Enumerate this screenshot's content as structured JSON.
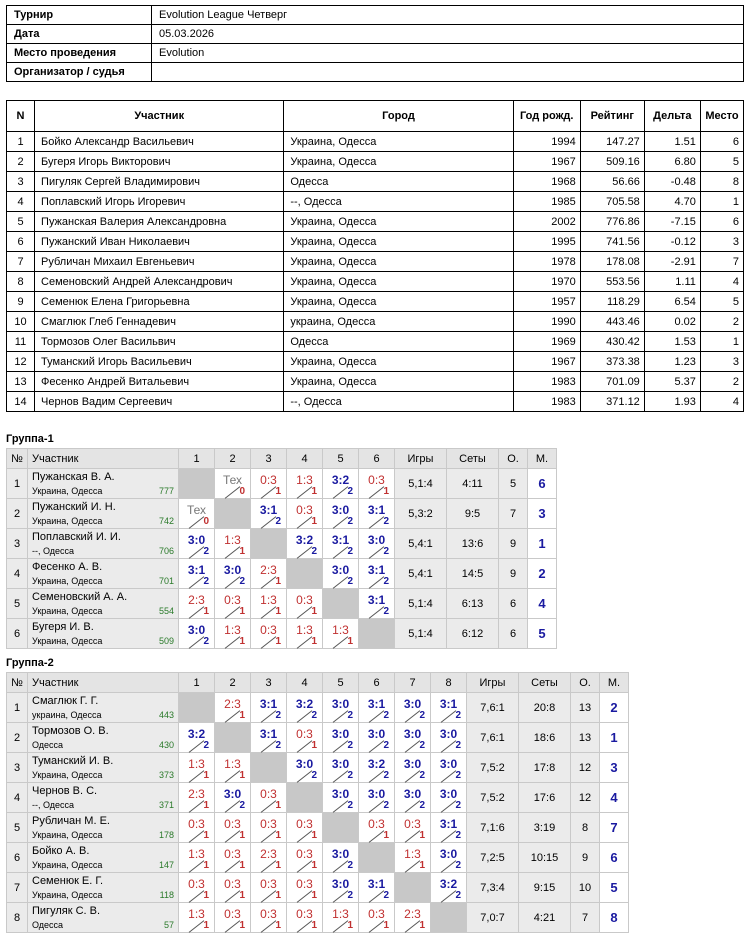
{
  "info": [
    {
      "key": "Турнир",
      "value": "Evolution League Четверг"
    },
    {
      "key": "Дата",
      "value": "05.03.2026"
    },
    {
      "key": "Место проведения",
      "value": "Evolution"
    },
    {
      "key": "Организатор / судья",
      "value": ""
    }
  ],
  "participants": {
    "headers": [
      "N",
      "Участник",
      "Город",
      "Год рожд.",
      "Рейтинг",
      "Дельта",
      "Место"
    ],
    "rows": [
      [
        "1",
        "Бойко Александр Васильевич",
        "Украина, Одесса",
        "1994",
        "147.27",
        "1.51",
        "6"
      ],
      [
        "2",
        "Бугеря Игорь Викторович",
        "Украина, Одесса",
        "1967",
        "509.16",
        "6.80",
        "5"
      ],
      [
        "3",
        "Пигуляк Сергей Владимирович",
        "Одесса",
        "1968",
        "56.66",
        "-0.48",
        "8"
      ],
      [
        "4",
        "Поплавский Игорь Игоревич",
        "--, Одесса",
        "1985",
        "705.58",
        "4.70",
        "1"
      ],
      [
        "5",
        "Пужанская  Валерия Александровна",
        "Украина, Одесса",
        "2002",
        "776.86",
        "-7.15",
        "6"
      ],
      [
        "6",
        "Пужанский Иван Николаевич",
        "Украина, Одесса",
        "1995",
        "741.56",
        "-0.12",
        "3"
      ],
      [
        "7",
        "Рубличан Михаил Евгеньевич",
        "Украина, Одесса",
        "1978",
        "178.08",
        "-2.91",
        "7"
      ],
      [
        "8",
        "Семеновский Андрей Александрович",
        "Украина, Одесса",
        "1970",
        "553.56",
        "1.11",
        "4"
      ],
      [
        "9",
        "Семенюк Елена Григорьевна",
        "Украина, Одесса",
        "1957",
        "118.29",
        "6.54",
        "5"
      ],
      [
        "10",
        "Смаглюк Глеб Геннадевич",
        "украина, Одесса",
        "1990",
        "443.46",
        "0.02",
        "2"
      ],
      [
        "11",
        "Тормозов Олег Васильвич",
        "Одесса",
        "1969",
        "430.42",
        "1.53",
        "1"
      ],
      [
        "12",
        "Туманский Игорь Васильевич",
        "Украина, Одесса",
        "1967",
        "373.38",
        "1.23",
        "3"
      ],
      [
        "13",
        "Фесенко Андрей Витальевич",
        "Украина, Одесса",
        "1983",
        "701.09",
        "5.37",
        "2"
      ],
      [
        "14",
        "Чернов Вадим Сергеевич",
        "--, Одесса",
        "1983",
        "371.12",
        "1.93",
        "4"
      ]
    ]
  },
  "groups": [
    {
      "title": "Группа-1",
      "headers": {
        "num": "№",
        "name": "Участник",
        "games": "Игры",
        "sets": "Сеты",
        "points": "О.",
        "place": "М."
      },
      "rows": [
        {
          "n": "1",
          "name": "Пужанская В. А.",
          "city": "Украина, Одесса",
          "rating": "777",
          "cells": [
            null,
            {
              "s": "Тех",
              "p": "0",
              "r": "tech"
            },
            {
              "s": "0:3",
              "p": "1",
              "r": "loss"
            },
            {
              "s": "1:3",
              "p": "1",
              "r": "loss"
            },
            {
              "s": "3:2",
              "p": "2",
              "r": "win"
            },
            {
              "s": "0:3",
              "p": "1",
              "r": "loss"
            }
          ],
          "games": "5,1:4",
          "sets": "4:11",
          "points": "5",
          "place": "6"
        },
        {
          "n": "2",
          "name": "Пужанский И. Н.",
          "city": "Украина, Одесса",
          "rating": "742",
          "cells": [
            {
              "s": "Тех",
              "p": "0",
              "r": "tech"
            },
            null,
            {
              "s": "3:1",
              "p": "2",
              "r": "win"
            },
            {
              "s": "0:3",
              "p": "1",
              "r": "loss"
            },
            {
              "s": "3:0",
              "p": "2",
              "r": "win"
            },
            {
              "s": "3:1",
              "p": "2",
              "r": "win"
            }
          ],
          "games": "5,3:2",
          "sets": "9:5",
          "points": "7",
          "place": "3"
        },
        {
          "n": "3",
          "name": "Поплавский И. И.",
          "city": "--, Одесса",
          "rating": "706",
          "cells": [
            {
              "s": "3:0",
              "p": "2",
              "r": "win"
            },
            {
              "s": "1:3",
              "p": "1",
              "r": "loss"
            },
            null,
            {
              "s": "3:2",
              "p": "2",
              "r": "win"
            },
            {
              "s": "3:1",
              "p": "2",
              "r": "win"
            },
            {
              "s": "3:0",
              "p": "2",
              "r": "win"
            }
          ],
          "games": "5,4:1",
          "sets": "13:6",
          "points": "9",
          "place": "1"
        },
        {
          "n": "4",
          "name": "Фесенко А. В.",
          "city": "Украина, Одесса",
          "rating": "701",
          "cells": [
            {
              "s": "3:1",
              "p": "2",
              "r": "win"
            },
            {
              "s": "3:0",
              "p": "2",
              "r": "win"
            },
            {
              "s": "2:3",
              "p": "1",
              "r": "loss"
            },
            null,
            {
              "s": "3:0",
              "p": "2",
              "r": "win"
            },
            {
              "s": "3:1",
              "p": "2",
              "r": "win"
            }
          ],
          "games": "5,4:1",
          "sets": "14:5",
          "points": "9",
          "place": "2"
        },
        {
          "n": "5",
          "name": "Семеновский А. А.",
          "city": "Украина, Одесса",
          "rating": "554",
          "cells": [
            {
              "s": "2:3",
              "p": "1",
              "r": "loss"
            },
            {
              "s": "0:3",
              "p": "1",
              "r": "loss"
            },
            {
              "s": "1:3",
              "p": "1",
              "r": "loss"
            },
            {
              "s": "0:3",
              "p": "1",
              "r": "loss"
            },
            null,
            {
              "s": "3:1",
              "p": "2",
              "r": "win"
            }
          ],
          "games": "5,1:4",
          "sets": "6:13",
          "points": "6",
          "place": "4"
        },
        {
          "n": "6",
          "name": "Бугеря И. В.",
          "city": "Украина, Одесса",
          "rating": "509",
          "cells": [
            {
              "s": "3:0",
              "p": "2",
              "r": "win"
            },
            {
              "s": "1:3",
              "p": "1",
              "r": "loss"
            },
            {
              "s": "0:3",
              "p": "1",
              "r": "loss"
            },
            {
              "s": "1:3",
              "p": "1",
              "r": "loss"
            },
            {
              "s": "1:3",
              "p": "1",
              "r": "loss"
            },
            null
          ],
          "games": "5,1:4",
          "sets": "6:12",
          "points": "6",
          "place": "5"
        }
      ]
    },
    {
      "title": "Группа-2",
      "headers": {
        "num": "№",
        "name": "Участник",
        "games": "Игры",
        "sets": "Сеты",
        "points": "О.",
        "place": "М."
      },
      "rows": [
        {
          "n": "1",
          "name": "Смаглюк Г. Г.",
          "city": "украина, Одесса",
          "rating": "443",
          "cells": [
            null,
            {
              "s": "2:3",
              "p": "1",
              "r": "loss"
            },
            {
              "s": "3:1",
              "p": "2",
              "r": "win"
            },
            {
              "s": "3:2",
              "p": "2",
              "r": "win"
            },
            {
              "s": "3:0",
              "p": "2",
              "r": "win"
            },
            {
              "s": "3:1",
              "p": "2",
              "r": "win"
            },
            {
              "s": "3:0",
              "p": "2",
              "r": "win"
            },
            {
              "s": "3:1",
              "p": "2",
              "r": "win"
            }
          ],
          "games": "7,6:1",
          "sets": "20:8",
          "points": "13",
          "place": "2"
        },
        {
          "n": "2",
          "name": "Тормозов О. В.",
          "city": "Одесса",
          "rating": "430",
          "cells": [
            {
              "s": "3:2",
              "p": "2",
              "r": "win"
            },
            null,
            {
              "s": "3:1",
              "p": "2",
              "r": "win"
            },
            {
              "s": "0:3",
              "p": "1",
              "r": "loss"
            },
            {
              "s": "3:0",
              "p": "2",
              "r": "win"
            },
            {
              "s": "3:0",
              "p": "2",
              "r": "win"
            },
            {
              "s": "3:0",
              "p": "2",
              "r": "win"
            },
            {
              "s": "3:0",
              "p": "2",
              "r": "win"
            }
          ],
          "games": "7,6:1",
          "sets": "18:6",
          "points": "13",
          "place": "1"
        },
        {
          "n": "3",
          "name": "Туманский И. В.",
          "city": "Украина, Одесса",
          "rating": "373",
          "cells": [
            {
              "s": "1:3",
              "p": "1",
              "r": "loss"
            },
            {
              "s": "1:3",
              "p": "1",
              "r": "loss"
            },
            null,
            {
              "s": "3:0",
              "p": "2",
              "r": "win"
            },
            {
              "s": "3:0",
              "p": "2",
              "r": "win"
            },
            {
              "s": "3:2",
              "p": "2",
              "r": "win"
            },
            {
              "s": "3:0",
              "p": "2",
              "r": "win"
            },
            {
              "s": "3:0",
              "p": "2",
              "r": "win"
            }
          ],
          "games": "7,5:2",
          "sets": "17:8",
          "points": "12",
          "place": "3"
        },
        {
          "n": "4",
          "name": "Чернов В. С.",
          "city": "--, Одесса",
          "rating": "371",
          "cells": [
            {
              "s": "2:3",
              "p": "1",
              "r": "loss"
            },
            {
              "s": "3:0",
              "p": "2",
              "r": "win"
            },
            {
              "s": "0:3",
              "p": "1",
              "r": "loss"
            },
            null,
            {
              "s": "3:0",
              "p": "2",
              "r": "win"
            },
            {
              "s": "3:0",
              "p": "2",
              "r": "win"
            },
            {
              "s": "3:0",
              "p": "2",
              "r": "win"
            },
            {
              "s": "3:0",
              "p": "2",
              "r": "win"
            }
          ],
          "games": "7,5:2",
          "sets": "17:6",
          "points": "12",
          "place": "4"
        },
        {
          "n": "5",
          "name": "Рубличан М. Е.",
          "city": "Украина, Одесса",
          "rating": "178",
          "cells": [
            {
              "s": "0:3",
              "p": "1",
              "r": "loss"
            },
            {
              "s": "0:3",
              "p": "1",
              "r": "loss"
            },
            {
              "s": "0:3",
              "p": "1",
              "r": "loss"
            },
            {
              "s": "0:3",
              "p": "1",
              "r": "loss"
            },
            null,
            {
              "s": "0:3",
              "p": "1",
              "r": "loss"
            },
            {
              "s": "0:3",
              "p": "1",
              "r": "loss"
            },
            {
              "s": "3:1",
              "p": "2",
              "r": "win"
            }
          ],
          "games": "7,1:6",
          "sets": "3:19",
          "points": "8",
          "place": "7"
        },
        {
          "n": "6",
          "name": "Бойко А. В.",
          "city": "Украина, Одесса",
          "rating": "147",
          "cells": [
            {
              "s": "1:3",
              "p": "1",
              "r": "loss"
            },
            {
              "s": "0:3",
              "p": "1",
              "r": "loss"
            },
            {
              "s": "2:3",
              "p": "1",
              "r": "loss"
            },
            {
              "s": "0:3",
              "p": "1",
              "r": "loss"
            },
            {
              "s": "3:0",
              "p": "2",
              "r": "win"
            },
            null,
            {
              "s": "1:3",
              "p": "1",
              "r": "loss"
            },
            {
              "s": "3:0",
              "p": "2",
              "r": "win"
            }
          ],
          "games": "7,2:5",
          "sets": "10:15",
          "points": "9",
          "place": "6"
        },
        {
          "n": "7",
          "name": "Семенюк Е. Г.",
          "city": "Украина, Одесса",
          "rating": "118",
          "cells": [
            {
              "s": "0:3",
              "p": "1",
              "r": "loss"
            },
            {
              "s": "0:3",
              "p": "1",
              "r": "loss"
            },
            {
              "s": "0:3",
              "p": "1",
              "r": "loss"
            },
            {
              "s": "0:3",
              "p": "1",
              "r": "loss"
            },
            {
              "s": "3:0",
              "p": "2",
              "r": "win"
            },
            {
              "s": "3:1",
              "p": "2",
              "r": "win"
            },
            null,
            {
              "s": "3:2",
              "p": "2",
              "r": "win"
            }
          ],
          "games": "7,3:4",
          "sets": "9:15",
          "points": "10",
          "place": "5"
        },
        {
          "n": "8",
          "name": "Пигуляк С. В.",
          "city": "Одесса",
          "rating": "57",
          "cells": [
            {
              "s": "1:3",
              "p": "1",
              "r": "loss"
            },
            {
              "s": "0:3",
              "p": "1",
              "r": "loss"
            },
            {
              "s": "0:3",
              "p": "1",
              "r": "loss"
            },
            {
              "s": "0:3",
              "p": "1",
              "r": "loss"
            },
            {
              "s": "1:3",
              "p": "1",
              "r": "loss"
            },
            {
              "s": "0:3",
              "p": "1",
              "r": "loss"
            },
            {
              "s": "2:3",
              "p": "1",
              "r": "loss"
            },
            null
          ],
          "games": "7,0:7",
          "sets": "4:21",
          "points": "7",
          "place": "8"
        }
      ]
    }
  ],
  "colors": {
    "win": "#1a1aa0",
    "loss": "#c03030",
    "rating": "#2a7a2a",
    "header_bg": "#e4e4e4",
    "diagonal_bg": "#c8c8c8"
  }
}
